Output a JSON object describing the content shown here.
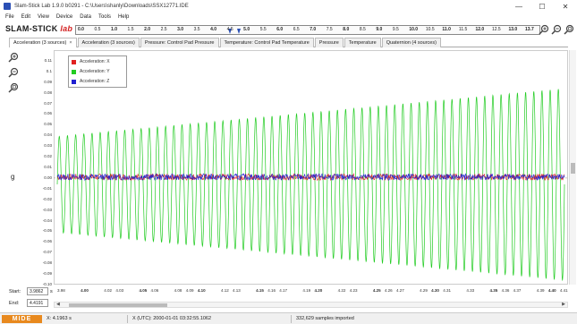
{
  "window": {
    "title": "Slam‑Stick Lab 1.9.0 b0291 - C:\\Users\\shanly\\Downloads\\SSX12771.IDE",
    "minimize": "—",
    "maximize": "☐",
    "close": "✕"
  },
  "menu": [
    "File",
    "Edit",
    "View",
    "Device",
    "Data",
    "Tools",
    "Help"
  ],
  "logo": {
    "main": "SLAM-STICK",
    "lab": "lab"
  },
  "timeline": {
    "labels": [
      {
        "t": "0.0",
        "b": true
      },
      {
        "t": "0.5",
        "b": false
      },
      {
        "t": "1.0",
        "b": true
      },
      {
        "t": "1.5",
        "b": false
      },
      {
        "t": "2.0",
        "b": true
      },
      {
        "t": "2.5",
        "b": false
      },
      {
        "t": "3.0",
        "b": true
      },
      {
        "t": "3.5",
        "b": false
      },
      {
        "t": "4.0",
        "b": true
      },
      {
        "t": "4.5",
        "b": false
      },
      {
        "t": "5.0",
        "b": true
      },
      {
        "t": "5.5",
        "b": false
      },
      {
        "t": "6.0",
        "b": true
      },
      {
        "t": "6.5",
        "b": false
      },
      {
        "t": "7.0",
        "b": true
      },
      {
        "t": "7.5",
        "b": false
      },
      {
        "t": "8.0",
        "b": true
      },
      {
        "t": "8.5",
        "b": false
      },
      {
        "t": "9.0",
        "b": true
      },
      {
        "t": "9.5",
        "b": false
      },
      {
        "t": "10.0",
        "b": true
      },
      {
        "t": "10.5",
        "b": false
      },
      {
        "t": "11.0",
        "b": true
      },
      {
        "t": "11.5",
        "b": false
      },
      {
        "t": "12.0",
        "b": true
      },
      {
        "t": "12.5",
        "b": false
      },
      {
        "t": "13.0",
        "b": true
      },
      {
        "t": "13.7",
        "b": true
      }
    ]
  },
  "tabs": [
    {
      "label": "Acceleration (3 sources)",
      "active": true,
      "closable": true
    },
    {
      "label": "Acceleration (3 sources)",
      "active": false,
      "closable": false
    },
    {
      "label": "Pressure: Control Pad Pressure",
      "active": false,
      "closable": false
    },
    {
      "label": "Temperature: Control Pad Temperature",
      "active": false,
      "closable": false
    },
    {
      "label": "Pressure",
      "active": false,
      "closable": false
    },
    {
      "label": "Temperature",
      "active": false,
      "closable": false
    },
    {
      "label": "Quaternion (4 sources)",
      "active": false,
      "closable": false
    }
  ],
  "units": "g",
  "legend": [
    {
      "label": "Acceleration: X",
      "color": "#e02020"
    },
    {
      "label": "Acceleration: Y",
      "color": "#22cc22"
    },
    {
      "label": "Acceleration: Z",
      "color": "#2020d0"
    }
  ],
  "chart_data": {
    "type": "line",
    "ylim": [
      -0.1,
      0.12
    ],
    "yticks": [
      "0.11",
      "0.1",
      "0.09",
      "0.08",
      "0.07",
      "0.06",
      "0.05",
      "0.04",
      "0.03",
      "0.02",
      "0.01",
      "0.00",
      "-0.01",
      "-0.02",
      "-0.03",
      "-0.04",
      "-0.05",
      "-0.06",
      "-0.07",
      "-0.08",
      "-0.09",
      "-0.10"
    ],
    "ytick_values": [
      0.11,
      0.1,
      0.09,
      0.08,
      0.07,
      0.06,
      0.05,
      0.04,
      0.03,
      0.02,
      0.01,
      0.0,
      -0.01,
      -0.02,
      -0.03,
      -0.04,
      -0.05,
      -0.06,
      -0.07,
      -0.08,
      -0.09,
      -0.1
    ],
    "xlim": [
      3.98,
      4.42
    ],
    "xticks": [
      {
        "t": "3.98",
        "v": 3.98,
        "b": false
      },
      {
        "t": "4.00",
        "v": 4.0,
        "b": true
      },
      {
        "t": "4.02",
        "v": 4.02,
        "b": false
      },
      {
        "t": "4.03",
        "v": 4.03,
        "b": false
      },
      {
        "t": "4.05",
        "v": 4.05,
        "b": true
      },
      {
        "t": "4.06",
        "v": 4.06,
        "b": false
      },
      {
        "t": "4.08",
        "v": 4.08,
        "b": false
      },
      {
        "t": "4.09",
        "v": 4.09,
        "b": false
      },
      {
        "t": "4.10",
        "v": 4.1,
        "b": true
      },
      {
        "t": "4.12",
        "v": 4.12,
        "b": false
      },
      {
        "t": "4.13",
        "v": 4.13,
        "b": false
      },
      {
        "t": "4.15",
        "v": 4.15,
        "b": true
      },
      {
        "t": "4.16",
        "v": 4.16,
        "b": false
      },
      {
        "t": "4.17",
        "v": 4.17,
        "b": false
      },
      {
        "t": "4.19",
        "v": 4.19,
        "b": false
      },
      {
        "t": "4.20",
        "v": 4.2,
        "b": true
      },
      {
        "t": "4.22",
        "v": 4.22,
        "b": false
      },
      {
        "t": "4.23",
        "v": 4.23,
        "b": false
      },
      {
        "t": "4.25",
        "v": 4.25,
        "b": true
      },
      {
        "t": "4.26",
        "v": 4.26,
        "b": false
      },
      {
        "t": "4.27",
        "v": 4.27,
        "b": false
      },
      {
        "t": "4.29",
        "v": 4.29,
        "b": false
      },
      {
        "t": "4.30",
        "v": 4.3,
        "b": true
      },
      {
        "t": "4.31",
        "v": 4.31,
        "b": false
      },
      {
        "t": "4.33",
        "v": 4.33,
        "b": false
      },
      {
        "t": "4.35",
        "v": 4.35,
        "b": true
      },
      {
        "t": "4.36",
        "v": 4.36,
        "b": false
      },
      {
        "t": "4.37",
        "v": 4.37,
        "b": false
      },
      {
        "t": "4.39",
        "v": 4.39,
        "b": false
      },
      {
        "t": "4.40",
        "v": 4.4,
        "b": true
      },
      {
        "t": "4.41",
        "v": 4.41,
        "b": false
      }
    ],
    "series": [
      {
        "name": "Acceleration: X",
        "color": "#e02020",
        "amplitude": 0.003
      },
      {
        "name": "Acceleration: Y",
        "color": "#22cc22",
        "amplitude_start": 0.045,
        "amplitude_end": 0.09,
        "cycles": 62
      },
      {
        "name": "Acceleration: Z",
        "color": "#2020d0",
        "amplitude": 0.003
      }
    ]
  },
  "range": {
    "start_label": "Start:",
    "start_value": "3.9862",
    "end_label": "End:",
    "end_value": "4.4191",
    "unit": "s"
  },
  "status": {
    "brand": "MIDE",
    "x_readout": "X: 4.1963 s",
    "utc": "X (UTC): 2000-01-01 03:32:55.1062",
    "samples": "332,629 samples imported"
  }
}
